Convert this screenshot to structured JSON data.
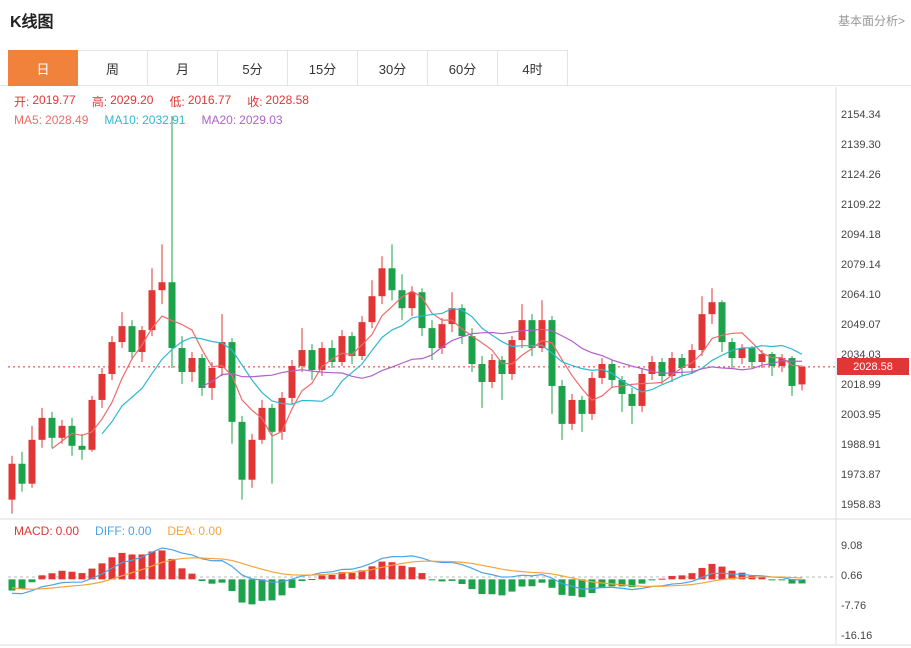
{
  "header": {
    "title": "K线图",
    "link_label": "基本面分析>"
  },
  "tabs": [
    {
      "label": "日",
      "active": true
    },
    {
      "label": "周",
      "active": false
    },
    {
      "label": "月",
      "active": false
    },
    {
      "label": "5分",
      "active": false
    },
    {
      "label": "15分",
      "active": false
    },
    {
      "label": "30分",
      "active": false
    },
    {
      "label": "60分",
      "active": false
    },
    {
      "label": "4时",
      "active": false
    }
  ],
  "main_panel": {
    "ohlc": {
      "open_label": "开:",
      "open": "2019.77",
      "high_label": "高:",
      "high": "2029.20",
      "low_label": "低:",
      "low": "2016.77",
      "close_label": "收:",
      "close": "2028.58"
    },
    "ma": {
      "ma5_label": "MA5:",
      "ma5": "2028.49",
      "ma10_label": "MA10:",
      "ma10": "2032.91",
      "ma20_label": "MA20:",
      "ma20": "2029.03"
    },
    "price_tag": "2028.58"
  },
  "macd_panel": {
    "macd_label": "MACD:",
    "macd": "0.00",
    "diff_label": "DIFF:",
    "diff": "0.00",
    "dea_label": "DEA:",
    "dea": "0.00"
  },
  "colors": {
    "accent": "#f0823c",
    "up": "#e23535",
    "down": "#1ba24a",
    "ma5": "#f06a6a",
    "ma10": "#2fb9cf",
    "ma20": "#b161c9",
    "diff": "#4aa3e8",
    "dea": "#f5a43a",
    "link_gray": "#999999",
    "axis_text": "#444444"
  },
  "chart_data": {
    "type": "candlestick",
    "title": "K线图 (daily K-line with MA5/MA10/MA20 and MACD sub-chart)",
    "legend_position": "top-left",
    "grid": false,
    "y_axis_ticks": [
      2154.34,
      2139.3,
      2124.26,
      2109.22,
      2094.18,
      2079.14,
      2064.1,
      2049.07,
      2034.03,
      2018.99,
      2003.95,
      1988.91,
      1973.87,
      1958.83
    ],
    "macd_axis_ticks": [
      9.08,
      0.66,
      -7.76,
      -16.16
    ],
    "current_price": 2028.58,
    "ma_periods": [
      5,
      10,
      20
    ],
    "candles": [
      [
        1962,
        1984,
        1955,
        1980
      ],
      [
        1980,
        1986,
        1966,
        1970
      ],
      [
        1970,
        1999,
        1968,
        1992
      ],
      [
        1992,
        2008,
        1988,
        2003
      ],
      [
        2003,
        2006,
        1988,
        1993
      ],
      [
        1993,
        2002,
        1990,
        1999
      ],
      [
        1999,
        2003,
        1984,
        1989
      ],
      [
        1989,
        1995,
        1982,
        1987
      ],
      [
        1987,
        2014,
        1986,
        2012
      ],
      [
        2012,
        2028,
        2008,
        2025
      ],
      [
        2025,
        2044,
        2022,
        2041
      ],
      [
        2041,
        2056,
        2038,
        2049
      ],
      [
        2049,
        2052,
        2032,
        2036
      ],
      [
        2036,
        2049,
        2031,
        2047
      ],
      [
        2047,
        2078,
        2044,
        2067
      ],
      [
        2067,
        2090,
        2060,
        2071
      ],
      [
        2071,
        2154.34,
        2028,
        2038
      ],
      [
        2038,
        2044,
        2020,
        2026
      ],
      [
        2026,
        2036,
        2021,
        2033
      ],
      [
        2033,
        2035,
        2014,
        2018
      ],
      [
        2018,
        2031,
        2012,
        2028
      ],
      [
        2028,
        2055,
        2024,
        2041
      ],
      [
        2041,
        2043,
        1990,
        2001
      ],
      [
        2001,
        2004,
        1962,
        1972
      ],
      [
        1972,
        1995,
        1968,
        1992
      ],
      [
        1992,
        2012,
        1990,
        2008
      ],
      [
        2008,
        2010,
        1970,
        1996
      ],
      [
        1996,
        2016,
        1992,
        2013
      ],
      [
        2013,
        2032,
        2010,
        2029
      ],
      [
        2029,
        2048,
        2026,
        2037
      ],
      [
        2037,
        2040,
        2022,
        2027
      ],
      [
        2027,
        2041,
        2024,
        2038
      ],
      [
        2038,
        2042,
        2028,
        2031
      ],
      [
        2031,
        2047,
        2029,
        2044
      ],
      [
        2044,
        2046,
        2030,
        2034
      ],
      [
        2034,
        2054,
        2032,
        2051
      ],
      [
        2051,
        2072,
        2048,
        2064
      ],
      [
        2064,
        2084,
        2060,
        2078
      ],
      [
        2078,
        2090,
        2062,
        2067
      ],
      [
        2067,
        2075,
        2052,
        2058
      ],
      [
        2058,
        2069,
        2054,
        2066
      ],
      [
        2066,
        2068,
        2044,
        2048
      ],
      [
        2048,
        2052,
        2032,
        2038
      ],
      [
        2038,
        2053,
        2035,
        2050
      ],
      [
        2050,
        2066,
        2046,
        2058
      ],
      [
        2058,
        2060,
        2040,
        2044
      ],
      [
        2044,
        2048,
        2026,
        2030
      ],
      [
        2030,
        2034,
        2008,
        2021
      ],
      [
        2021,
        2035,
        2018,
        2032
      ],
      [
        2032,
        2034,
        2012,
        2025
      ],
      [
        2025,
        2044,
        2022,
        2042
      ],
      [
        2042,
        2060,
        2038,
        2052
      ],
      [
        2052,
        2055,
        2034,
        2038
      ],
      [
        2038,
        2062,
        2036,
        2052
      ],
      [
        2052,
        2054,
        2005,
        2019
      ],
      [
        2019,
        2022,
        1992,
        2000
      ],
      [
        2000,
        2015,
        1997,
        2012
      ],
      [
        2012,
        2014,
        1996,
        2005
      ],
      [
        2005,
        2026,
        2002,
        2023
      ],
      [
        2023,
        2033,
        2020,
        2030
      ],
      [
        2030,
        2032,
        2018,
        2022
      ],
      [
        2022,
        2024,
        2006,
        2015
      ],
      [
        2015,
        2018,
        2000,
        2009
      ],
      [
        2009,
        2028,
        2006,
        2025
      ],
      [
        2025,
        2034,
        2022,
        2031
      ],
      [
        2031,
        2033,
        2020,
        2024
      ],
      [
        2024,
        2036,
        2021,
        2033
      ],
      [
        2033,
        2035,
        2024,
        2028
      ],
      [
        2028,
        2040,
        2025,
        2037
      ],
      [
        2037,
        2064,
        2034,
        2055
      ],
      [
        2055,
        2068,
        2050,
        2061
      ],
      [
        2061,
        2062,
        2036,
        2041
      ],
      [
        2041,
        2043,
        2028,
        2033
      ],
      [
        2033,
        2040,
        2030,
        2038
      ],
      [
        2038,
        2039,
        2028,
        2031
      ],
      [
        2031,
        2037,
        2028,
        2035
      ],
      [
        2035,
        2036,
        2024,
        2029
      ],
      [
        2029,
        2035,
        2026,
        2033
      ],
      [
        2033,
        2034,
        2014,
        2019
      ],
      [
        2019.77,
        2029.2,
        2016.77,
        2028.58
      ]
    ]
  }
}
